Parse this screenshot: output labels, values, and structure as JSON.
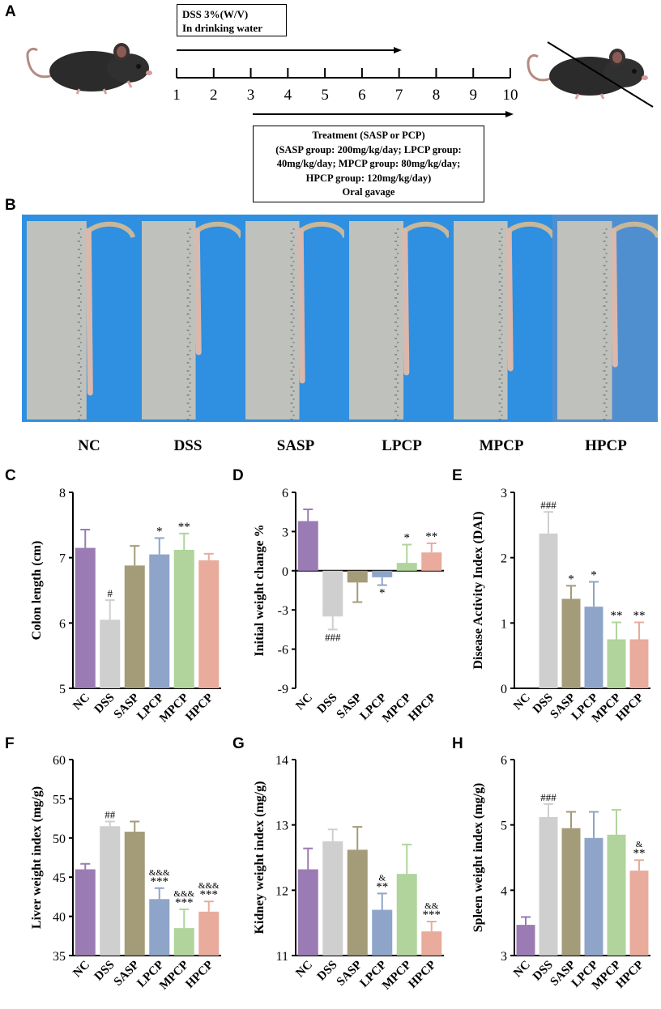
{
  "panels": {
    "A": "A",
    "B": "B",
    "C": "C",
    "D": "D",
    "E": "E",
    "F": "F",
    "G": "G",
    "H": "H"
  },
  "timeline": {
    "dss_line1": "DSS 3%(W/V)",
    "dss_line2": "In drinking water",
    "days": [
      "1",
      "2",
      "3",
      "4",
      "5",
      "6",
      "7",
      "8",
      "9",
      "10"
    ],
    "treatment_lines": [
      "Treatment (SASP or PCP)",
      "(SASP group: 200mg/kg/day;  LPCP group:",
      "40mg/kg/day; MPCP group: 80mg/kg/day;",
      "HPCP group: 120mg/kg/day)",
      "Oral gavage"
    ]
  },
  "photo_groups": [
    "NC",
    "DSS",
    "SASP",
    "LPCP",
    "MPCP",
    "HPCP"
  ],
  "colors": {
    "NC": "#9b7bb3",
    "DSS": "#cfcfcf",
    "SASP": "#a49b78",
    "LPCP": "#8ea4c8",
    "MPCP": "#b0d49b",
    "HPCP": "#e8ab9c"
  },
  "chart_data": [
    {
      "id": "C",
      "type": "bar",
      "categories": [
        "NC",
        "DSS",
        "SASP",
        "LPCP",
        "MPCP",
        "HPCP"
      ],
      "values": [
        7.15,
        6.05,
        6.88,
        7.05,
        7.12,
        6.96
      ],
      "errors": [
        0.28,
        0.3,
        0.3,
        0.25,
        0.25,
        0.1
      ],
      "ylabel": "Colon length (cm)",
      "ylim": [
        5,
        8
      ],
      "yticks": [
        5,
        6,
        7,
        8
      ],
      "annotations": [
        "",
        "#",
        "",
        "*",
        "**",
        ""
      ]
    },
    {
      "id": "D",
      "type": "bar",
      "categories": [
        "NC",
        "DSS",
        "SASP",
        "LPCP",
        "MPCP",
        "HPCP"
      ],
      "values": [
        3.8,
        -3.5,
        -0.9,
        -0.5,
        0.6,
        1.4
      ],
      "errors": [
        0.9,
        1.0,
        1.5,
        0.6,
        1.4,
        0.7
      ],
      "ylabel": "Initial weight change %",
      "ylim": [
        -9,
        6
      ],
      "yticks": [
        -9,
        -6,
        -3,
        0,
        3,
        6
      ],
      "annotations": [
        "",
        "###",
        "",
        "*",
        "*",
        "**"
      ]
    },
    {
      "id": "E",
      "type": "bar",
      "categories": [
        "NC",
        "DSS",
        "SASP",
        "LPCP",
        "MPCP",
        "HPCP"
      ],
      "values": [
        0,
        2.37,
        1.37,
        1.25,
        0.75,
        0.75
      ],
      "errors": [
        0,
        0.33,
        0.2,
        0.38,
        0.26,
        0.26
      ],
      "ylabel": "Disease Activity Index (DAI)",
      "ylim": [
        0,
        3
      ],
      "yticks": [
        0,
        1,
        2,
        3
      ],
      "annotations": [
        "",
        "###",
        "*",
        "*",
        "**",
        "**"
      ]
    },
    {
      "id": "F",
      "type": "bar",
      "categories": [
        "NC",
        "DSS",
        "SASP",
        "LPCP",
        "MPCP",
        "HPCP"
      ],
      "values": [
        46,
        51.5,
        50.8,
        42.2,
        38.5,
        40.6
      ],
      "errors": [
        0.7,
        0.6,
        1.3,
        1.4,
        2.4,
        1.3
      ],
      "ylabel": "Liver weight index (mg/g)",
      "ylim": [
        35,
        60
      ],
      "yticks": [
        35,
        40,
        45,
        50,
        55,
        60
      ],
      "annotations": [
        "",
        "##",
        "",
        "***",
        "***",
        "***"
      ],
      "annotations2": [
        "",
        "",
        "",
        "&&&",
        "&&&",
        "&&&"
      ]
    },
    {
      "id": "G",
      "type": "bar",
      "categories": [
        "NC",
        "DSS",
        "SASP",
        "LPCP",
        "MPCP",
        "HPCP"
      ],
      "values": [
        12.32,
        12.75,
        12.62,
        11.7,
        12.25,
        11.37
      ],
      "errors": [
        0.32,
        0.18,
        0.35,
        0.25,
        0.45,
        0.15
      ],
      "ylabel": "Kidney weight index (mg/g)",
      "ylim": [
        11,
        14
      ],
      "yticks": [
        11,
        12,
        13,
        14
      ],
      "annotations": [
        "",
        "",
        "",
        "**",
        "",
        "***"
      ],
      "annotations2": [
        "",
        "",
        "",
        "&",
        "",
        "&&"
      ]
    },
    {
      "id": "H",
      "type": "bar",
      "categories": [
        "NC",
        "DSS",
        "SASP",
        "LPCP",
        "MPCP",
        "HPCP"
      ],
      "values": [
        3.47,
        5.12,
        4.95,
        4.8,
        4.85,
        4.3
      ],
      "errors": [
        0.12,
        0.2,
        0.25,
        0.4,
        0.38,
        0.16
      ],
      "ylabel": "Spleen weight index (mg/g)",
      "ylim": [
        3,
        6
      ],
      "yticks": [
        3,
        4,
        5,
        6
      ],
      "annotations": [
        "",
        "###",
        "",
        "",
        "",
        "**"
      ],
      "annotations2": [
        "",
        "",
        "",
        "",
        "",
        "&"
      ]
    }
  ]
}
